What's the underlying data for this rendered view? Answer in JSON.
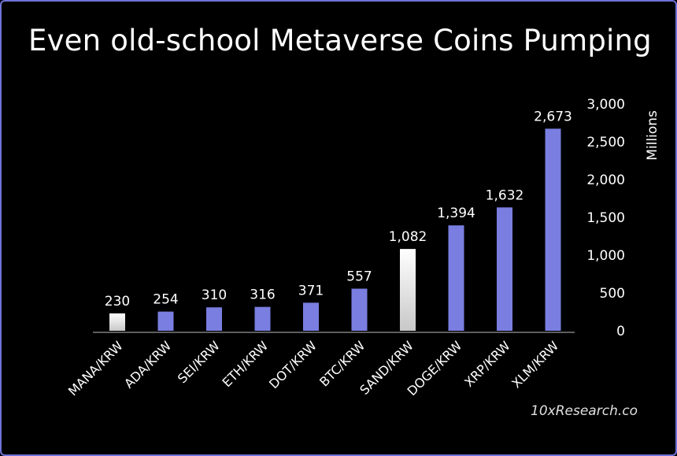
{
  "title": "Even old-school Metaverse Coins Pumping",
  "credit": "10xResearch.co",
  "colors": {
    "background": "#000000",
    "bar": "#7a7ee0",
    "highlight_top": "#ffffff",
    "highlight_bottom": "#c8c8c8",
    "text": "#ffffff",
    "border": "#6f73d8"
  },
  "chart_data": {
    "type": "bar",
    "title": "Even old-school Metaverse Coins Pumping",
    "ylabel": "Millions",
    "ylim": [
      0,
      3000
    ],
    "yticks": [
      0,
      500,
      1000,
      1500,
      2000,
      2500,
      3000
    ],
    "ytick_labels": [
      "0",
      "500",
      "1,000",
      "1,500",
      "2,000",
      "2,500",
      "3,000"
    ],
    "y_axis_position": "right",
    "grid": false,
    "categories": [
      "MANA/KRW",
      "ADA/KRW",
      "SEI/KRW",
      "ETH/KRW",
      "DOT/KRW",
      "BTC/KRW",
      "SAND/KRW",
      "DOGE/KRW",
      "XRP/KRW",
      "XLM/KRW"
    ],
    "values": [
      230,
      254,
      310,
      316,
      371,
      557,
      1082,
      1394,
      1632,
      2673
    ],
    "value_labels": [
      "230",
      "254",
      "310",
      "316",
      "371",
      "557",
      "1,082",
      "1,394",
      "1,632",
      "2,673"
    ],
    "highlighted": [
      "MANA/KRW",
      "SAND/KRW"
    ]
  }
}
